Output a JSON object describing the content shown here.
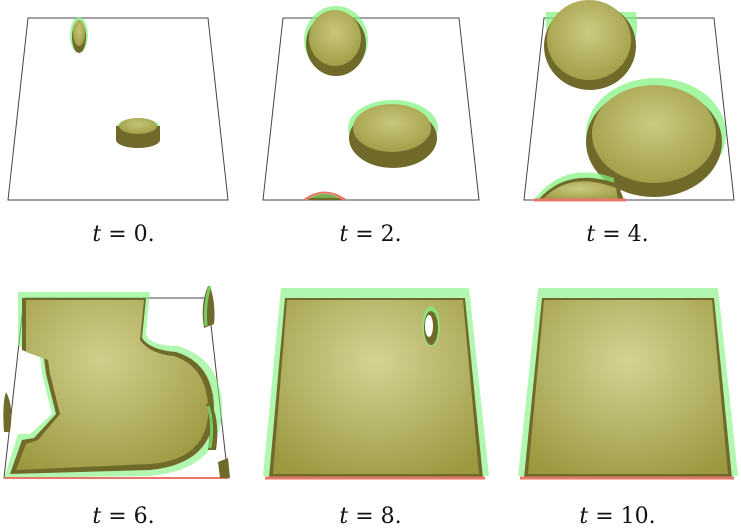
{
  "figure": {
    "panels": [
      {
        "t_var": "t",
        "t_eq": " = ",
        "t_val": "0."
      },
      {
        "t_var": "t",
        "t_eq": " = ",
        "t_val": "2."
      },
      {
        "t_var": "t",
        "t_eq": " = ",
        "t_val": "4."
      },
      {
        "t_var": "t",
        "t_eq": " = ",
        "t_val": "6."
      },
      {
        "t_var": "t",
        "t_eq": " = ",
        "t_val": "8."
      },
      {
        "t_var": "t",
        "t_eq": " = ",
        "t_val": "10."
      }
    ],
    "colors": {
      "fill": "#a8a64a",
      "fill_dark": "#6f6a2a",
      "rim_green": "#7ef27a",
      "rim_red": "#e8776a",
      "frame": "#444444"
    }
  }
}
